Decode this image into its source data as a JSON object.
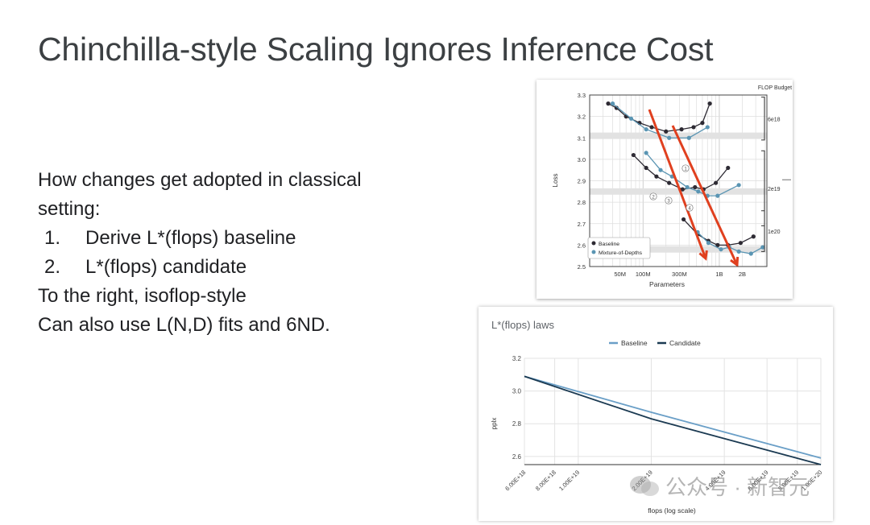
{
  "slide": {
    "title": "Chinchilla-style Scaling Ignores Inference Cost",
    "intro_line1": "How changes get adopted in classical",
    "intro_line2": "setting:",
    "steps": [
      {
        "num": "1.",
        "text": "Derive L*(flops) baseline"
      },
      {
        "num": "2.",
        "text": "L*(flops) candidate"
      }
    ],
    "note_line1": "To the right, isoflop-style",
    "note_line2": "Can also use L(N,D) fits and 6ND."
  },
  "colors": {
    "baseline_dark": "#2d2a33",
    "mod_blue": "#5a95b3",
    "arrow_red": "#e0401f",
    "law_baseline": "#6a9fc7",
    "law_candidate": "#1b3a52"
  },
  "chart_data": [
    {
      "type": "line",
      "title": "",
      "xlabel": "Parameters",
      "ylabel": "Loss",
      "x_scale": "log",
      "x_ticks": [
        "50M",
        "100M",
        "300M",
        "1B",
        "2B"
      ],
      "y_ticks": [
        "3.3",
        "3.2",
        "3.1",
        "3.0",
        "2.9",
        "2.8",
        "2.7",
        "2.6",
        "2.5"
      ],
      "ylim": [
        2.5,
        3.3
      ],
      "legend_title": "FLOP Budget",
      "budget_labels": [
        "6e18",
        "2e19",
        "1e20"
      ],
      "legend_position": "bottom-left",
      "annotation_markers": [
        "1",
        "2",
        "3",
        "4"
      ],
      "series": [
        {
          "name": "Baseline",
          "budget": "6e18",
          "x": [
            35000000.0,
            45000000.0,
            60000000.0,
            90000000.0,
            130000000.0,
            200000000.0,
            320000000.0,
            460000000.0,
            600000000.0,
            750000000.0
          ],
          "values": [
            3.26,
            3.24,
            3.2,
            3.17,
            3.15,
            3.13,
            3.14,
            3.15,
            3.17,
            3.26
          ]
        },
        {
          "name": "Mixture-of-Depths",
          "budget": "6e18",
          "x": [
            40000000.0,
            70000000.0,
            110000000.0,
            220000000.0,
            400000000.0,
            700000000.0
          ],
          "values": [
            3.26,
            3.19,
            3.14,
            3.1,
            3.1,
            3.15
          ]
        },
        {
          "name": "Baseline",
          "budget": "2e19",
          "x": [
            75000000.0,
            110000000.0,
            150000000.0,
            220000000.0,
            330000000.0,
            480000000.0,
            620000000.0,
            900000000.0,
            1300000000.0
          ],
          "values": [
            3.02,
            2.96,
            2.92,
            2.89,
            2.86,
            2.87,
            2.86,
            2.89,
            2.96
          ]
        },
        {
          "name": "Mixture-of-Depths",
          "budget": "2e19",
          "x": [
            110000000.0,
            170000000.0,
            240000000.0,
            380000000.0,
            530000000.0,
            700000000.0,
            950000000.0,
            1800000000.0
          ],
          "values": [
            3.03,
            2.95,
            2.92,
            2.87,
            2.85,
            2.83,
            2.83,
            2.88
          ]
        },
        {
          "name": "Baseline",
          "budget": "1e20",
          "x": [
            340000000.0,
            520000000.0,
            720000000.0,
            950000000.0,
            1300000000.0,
            1900000000.0,
            2800000000.0
          ],
          "values": [
            2.72,
            2.65,
            2.62,
            2.6,
            2.6,
            2.61,
            2.64
          ]
        },
        {
          "name": "Mixture-of-Depths",
          "budget": "1e20",
          "x": [
            520000000.0,
            720000000.0,
            1050000000.0,
            1350000000.0,
            1800000000.0,
            2600000000.0,
            3700000000.0
          ],
          "values": [
            2.66,
            2.61,
            2.58,
            2.59,
            2.57,
            2.56,
            2.59
          ]
        }
      ]
    },
    {
      "type": "line",
      "title": "L*(flops) laws",
      "xlabel": "flops (log scale)",
      "ylabel": "pplx",
      "x_scale": "log",
      "x_ticks": [
        "6.00E+18",
        "8.00E+18",
        "1.00E+19",
        "2.00E+19",
        "4.00E+19",
        "6.00E+19",
        "8.00E+19",
        "1.00E+20"
      ],
      "y_ticks": [
        "3.2",
        "3.0",
        "2.8",
        "2.6"
      ],
      "ylim": [
        2.55,
        3.2
      ],
      "legend_position": "top",
      "series": [
        {
          "name": "Baseline",
          "x": [
            6e+18,
            2e+19,
            1e+20
          ],
          "values": [
            3.09,
            2.87,
            2.59
          ]
        },
        {
          "name": "Candidate",
          "x": [
            6e+18,
            2e+19,
            1e+20
          ],
          "values": [
            3.09,
            2.83,
            2.55
          ]
        }
      ]
    }
  ],
  "watermark": {
    "text": "公众号 · 新智元"
  }
}
